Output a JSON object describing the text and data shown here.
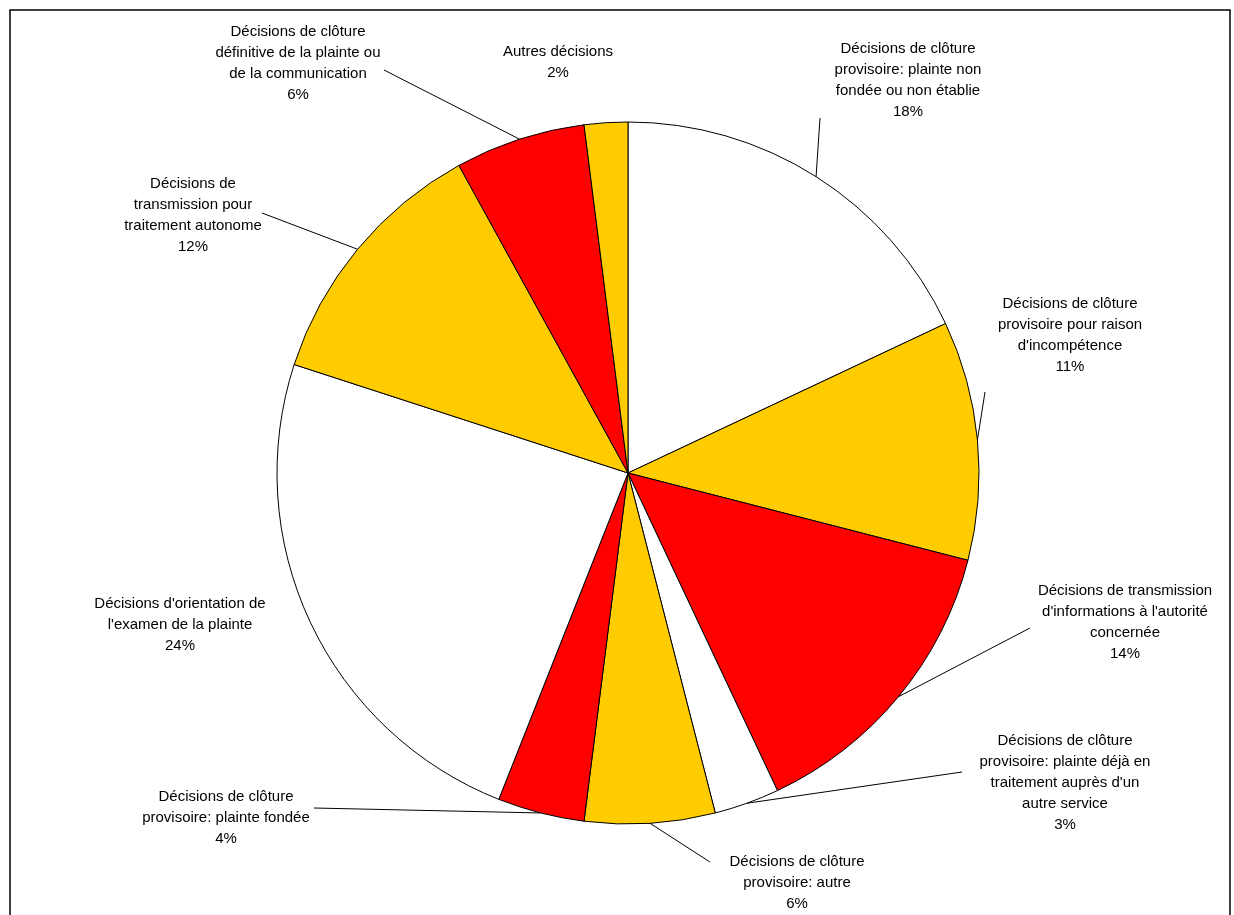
{
  "chart_data": {
    "type": "pie",
    "categories": [
      "Décisions de clôture provisoire: plainte non fondée ou non établie",
      "Décisions de clôture provisoire pour raison d'incompétence",
      "Décisions de transmission d'informations à l'autorité concernée",
      "Décisions de clôture provisoire: plainte déjà en traitement auprès d'un autre service",
      "Décisions de clôture provisoire: autre",
      "Décisions de clôture provisoire: plainte fondée",
      "Décisions d'orientation de l'examen de la plainte",
      "Décisions de transmission pour traitement autonome",
      "Décisions de clôture définitive de la plainte ou de la communication",
      "Autres décisions"
    ],
    "values": [
      18,
      11,
      14,
      3,
      6,
      4,
      24,
      12,
      6,
      2
    ],
    "colors": [
      "#ffffff",
      "#ffcc00",
      "#ff0000",
      "#ffffff",
      "#ffcc00",
      "#ff0000",
      "#ffffff",
      "#ffcc00",
      "#ff0000",
      "#ffcc00"
    ],
    "value_labels": [
      "18%",
      "11%",
      "14%",
      "3%",
      "6%",
      "4%",
      "24%",
      "12%",
      "6%",
      "2%"
    ]
  }
}
